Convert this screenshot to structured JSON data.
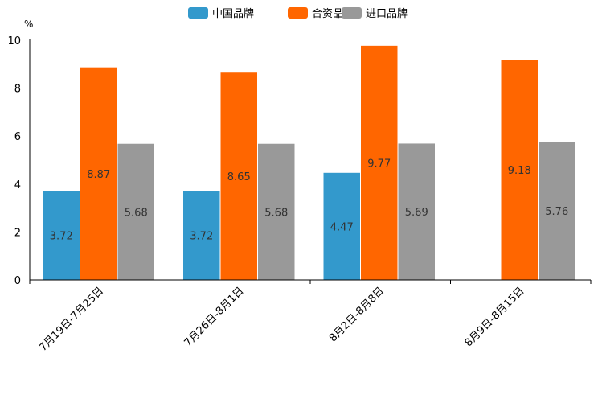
{
  "chart_data": {
    "type": "bar",
    "unit": "%",
    "categories": [
      "7月19日-7月25日",
      "7月26日-8月1日",
      "8月2日-8月8日",
      "8月9日-8月15日"
    ],
    "series": [
      {
        "name": "中国品牌",
        "color": "#3399cc",
        "values": [
          3.72,
          3.72,
          4.47,
          null
        ]
      },
      {
        "name": "合资品牌",
        "color": "#ff6600",
        "values": [
          8.87,
          8.65,
          9.77,
          9.18
        ]
      },
      {
        "name": "进口品牌",
        "color": "#999999",
        "values": [
          5.68,
          5.68,
          5.69,
          5.76
        ]
      }
    ],
    "ylim": [
      0,
      10
    ],
    "yticks": [
      0,
      2,
      4,
      6,
      8,
      10
    ],
    "legend_position": "top-center"
  }
}
